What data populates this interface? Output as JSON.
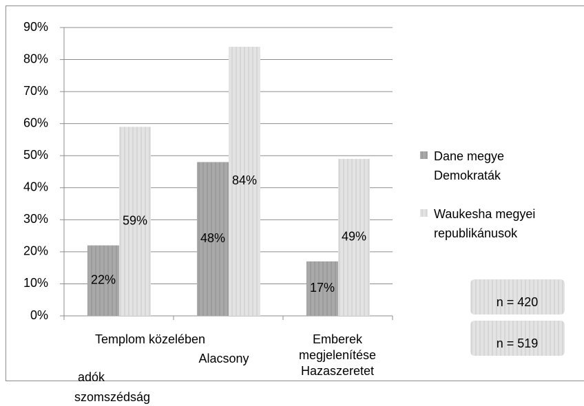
{
  "chart_data": {
    "type": "bar",
    "categories": [
      [
        "Templom közelében",
        "adók",
        "szomszédság"
      ],
      [
        "Alacsony"
      ],
      [
        "Emberek",
        "megjelenítése",
        "Hazaszeretet"
      ]
    ],
    "series": [
      {
        "name": [
          "Dane megye",
          "Demokraták"
        ],
        "color": "#a9a9a9",
        "values": [
          22,
          48,
          17
        ],
        "value_labels": [
          "22%",
          "48%",
          "17%"
        ]
      },
      {
        "name": [
          "Waukesha megyei",
          "republikánusok"
        ],
        "color": "#e3e3e3",
        "values": [
          59,
          84,
          49
        ],
        "value_labels": [
          "59%",
          "84%",
          "49%"
        ]
      }
    ],
    "ylim": [
      0,
      90
    ],
    "yticks": [
      {
        "value": 0,
        "label": "0%"
      },
      {
        "value": 10,
        "label": "10%"
      },
      {
        "value": 20,
        "label": "20%"
      },
      {
        "value": 30,
        "label": "30%"
      },
      {
        "value": 40,
        "label": "40%"
      },
      {
        "value": 50,
        "label": "50%"
      },
      {
        "value": 60,
        "label": "60%"
      },
      {
        "value": 70,
        "label": "70%"
      },
      {
        "value": 80,
        "label": "80%"
      },
      {
        "value": 90,
        "label": "90%"
      }
    ],
    "grid": true,
    "legend": "right",
    "annotations": [
      "n = 420",
      "n = 519"
    ]
  }
}
